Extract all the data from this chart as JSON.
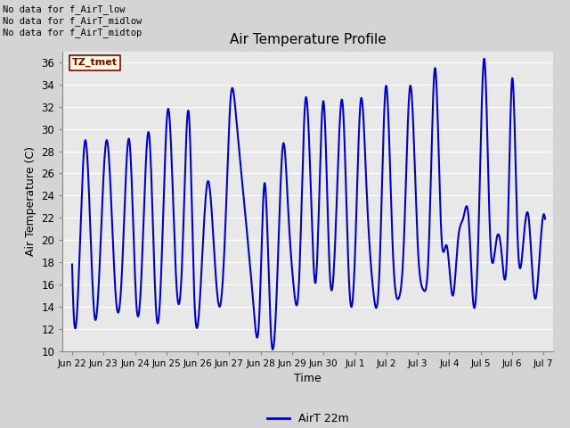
{
  "title": "Air Temperature Profile",
  "xlabel": "Time",
  "ylabel": "Air Temperature (C)",
  "ylim": [
    10,
    37
  ],
  "yticks": [
    10,
    12,
    14,
    16,
    18,
    20,
    22,
    24,
    26,
    28,
    30,
    32,
    34,
    36
  ],
  "line_color": "#0000CC",
  "line_width": 1.5,
  "legend_label": "AirT 22m",
  "no_data_texts": [
    "No data for f_AirT_low",
    "No data for f_AirT_midlow",
    "No data for f_AirT_midtop"
  ],
  "tz_label": "TZ_tmet",
  "fig_bg_color": "#d4d4d4",
  "plot_bg_color": "#e8e8e8",
  "x_dates": [
    "Jun 22",
    "Jun 23",
    "Jun 24",
    "Jun 25",
    "Jun 26",
    "Jun 27",
    "Jun 28",
    "Jun 29",
    "Jun 30",
    "Jul 1",
    "Jul 2",
    "Jul 3",
    "Jul 4",
    "Jul 5",
    "Jul 6",
    "Jul 7"
  ],
  "key_points": [
    [
      0.0,
      17.8
    ],
    [
      0.18,
      14.7
    ],
    [
      0.42,
      29.0
    ],
    [
      0.72,
      13.0
    ],
    [
      0.85,
      16.2
    ],
    [
      1.1,
      29.0
    ],
    [
      1.4,
      14.5
    ],
    [
      1.58,
      16.8
    ],
    [
      1.82,
      29.0
    ],
    [
      2.05,
      14.0
    ],
    [
      2.2,
      16.5
    ],
    [
      2.45,
      29.5
    ],
    [
      2.68,
      13.3
    ],
    [
      2.82,
      16.0
    ],
    [
      3.05,
      31.8
    ],
    [
      3.32,
      16.0
    ],
    [
      3.5,
      18.0
    ],
    [
      3.72,
      31.2
    ],
    [
      3.88,
      15.5
    ],
    [
      4.08,
      15.3
    ],
    [
      4.32,
      25.3
    ],
    [
      4.52,
      19.0
    ],
    [
      4.7,
      14.0
    ],
    [
      4.88,
      21.5
    ],
    [
      5.05,
      33.0
    ],
    [
      5.22,
      31.0
    ],
    [
      5.42,
      25.0
    ],
    [
      5.62,
      19.0
    ],
    [
      5.78,
      13.8
    ],
    [
      5.95,
      12.8
    ],
    [
      6.12,
      25.1
    ],
    [
      6.32,
      11.9
    ],
    [
      6.5,
      14.5
    ],
    [
      6.72,
      28.7
    ],
    [
      6.88,
      22.5
    ],
    [
      7.05,
      15.8
    ],
    [
      7.22,
      16.2
    ],
    [
      7.42,
      32.5
    ],
    [
      7.62,
      22.5
    ],
    [
      7.75,
      16.2
    ],
    [
      8.0,
      32.5
    ],
    [
      8.2,
      17.0
    ],
    [
      8.42,
      23.5
    ],
    [
      8.6,
      32.5
    ],
    [
      8.82,
      15.8
    ],
    [
      9.0,
      18.5
    ],
    [
      9.18,
      32.5
    ],
    [
      9.38,
      24.0
    ],
    [
      9.58,
      15.5
    ],
    [
      9.78,
      17.2
    ],
    [
      9.98,
      33.8
    ],
    [
      10.2,
      19.5
    ],
    [
      10.4,
      14.8
    ],
    [
      10.55,
      19.3
    ],
    [
      10.75,
      33.8
    ],
    [
      11.0,
      19.5
    ],
    [
      11.18,
      15.5
    ],
    [
      11.35,
      19.3
    ],
    [
      11.55,
      35.5
    ],
    [
      11.75,
      20.5
    ],
    [
      11.92,
      19.5
    ],
    [
      12.12,
      15.0
    ],
    [
      12.28,
      20.0
    ],
    [
      12.45,
      22.0
    ],
    [
      12.62,
      21.9
    ],
    [
      12.75,
      14.8
    ],
    [
      12.92,
      19.5
    ],
    [
      13.12,
      36.3
    ],
    [
      13.3,
      20.5
    ],
    [
      13.5,
      20.0
    ],
    [
      13.65,
      19.3
    ],
    [
      13.85,
      19.5
    ],
    [
      14.0,
      34.5
    ],
    [
      14.18,
      20.0
    ],
    [
      14.35,
      19.5
    ],
    [
      14.52,
      22.2
    ],
    [
      14.72,
      14.8
    ],
    [
      14.9,
      19.5
    ],
    [
      15.05,
      21.9
    ]
  ]
}
